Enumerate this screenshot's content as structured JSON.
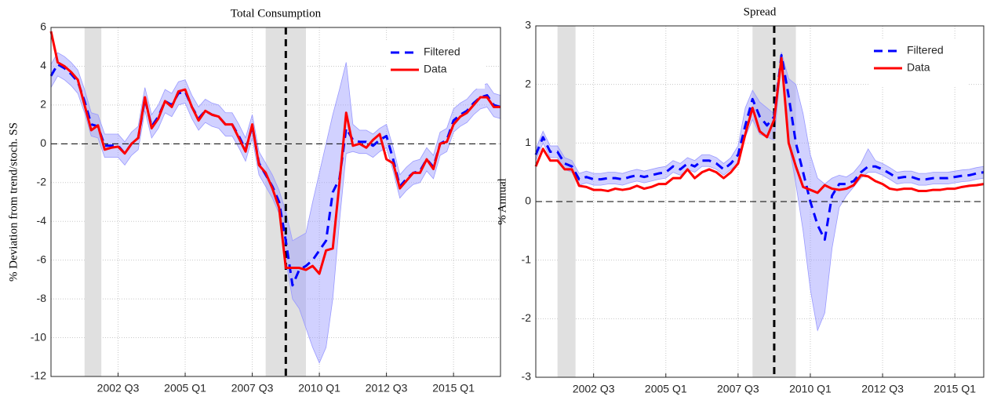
{
  "chart_data": [
    {
      "type": "line",
      "title": "Total Consumption",
      "y_label": "% Deviation from trend/stoch. SS",
      "x": [
        2000,
        2000.25,
        2000.5,
        2000.75,
        2001,
        2001.25,
        2001.5,
        2001.75,
        2002,
        2002.25,
        2002.5,
        2002.75,
        2003,
        2003.25,
        2003.5,
        2003.75,
        2004,
        2004.25,
        2004.5,
        2004.75,
        2005,
        2005.25,
        2005.5,
        2005.75,
        2006,
        2006.25,
        2006.5,
        2006.75,
        2007,
        2007.25,
        2007.5,
        2007.75,
        2008,
        2008.25,
        2008.5,
        2008.75,
        2009,
        2009.25,
        2009.5,
        2009.75,
        2010,
        2010.25,
        2010.5,
        2010.75,
        2011,
        2011.25,
        2011.5,
        2011.75,
        2012,
        2012.25,
        2012.5,
        2012.75,
        2013,
        2013.25,
        2013.5,
        2013.75,
        2014,
        2014.25,
        2014.5,
        2014.75,
        2015,
        2015.25,
        2015.5,
        2015.75,
        2016,
        2016.25,
        2016.5,
        2016.75
      ],
      "series": [
        {
          "name": "Filtered",
          "color": "#0000ff",
          "linestyle": "dashed",
          "values": [
            3.5,
            4.1,
            3.9,
            3.6,
            3.2,
            2.2,
            1.0,
            0.9,
            -0.1,
            -0.1,
            -0.1,
            -0.5,
            0.0,
            0.3,
            2.3,
            0.9,
            1.4,
            2.2,
            2.0,
            2.6,
            2.7,
            1.9,
            1.3,
            1.7,
            1.5,
            1.4,
            1.0,
            1.0,
            0.4,
            -0.3,
            0.9,
            -1.0,
            -1.6,
            -2.2,
            -3.0,
            -5.0,
            -7.3,
            -6.5,
            -6.3,
            -6.0,
            -5.5,
            -5.0,
            -2.5,
            -1.8,
            0.8,
            0.2,
            0.1,
            0.1,
            -0.1,
            0.2,
            0.4,
            -0.8,
            -2.2,
            -1.8,
            -1.5,
            -1.4,
            -0.8,
            -1.2,
            0.0,
            0.2,
            1.2,
            1.5,
            1.7,
            2.1,
            2.4,
            2.5,
            2.0,
            1.9
          ]
        },
        {
          "name": "Data",
          "color": "#ff0000",
          "linestyle": "solid",
          "values": [
            5.8,
            4.2,
            4.0,
            3.7,
            3.3,
            2.0,
            0.7,
            0.95,
            -0.3,
            -0.2,
            -0.15,
            -0.5,
            0.0,
            0.3,
            2.4,
            0.8,
            1.3,
            2.2,
            1.9,
            2.7,
            2.8,
            1.9,
            1.2,
            1.7,
            1.5,
            1.4,
            1.0,
            1.0,
            0.3,
            -0.4,
            1.0,
            -1.1,
            -1.5,
            -2.3,
            -3.3,
            -6.4,
            -6.4,
            -6.4,
            -6.5,
            -6.3,
            -6.7,
            -5.5,
            -5.4,
            -2.0,
            1.6,
            -0.1,
            0.0,
            -0.2,
            0.2,
            0.5,
            -0.8,
            -1.0,
            -2.3,
            -1.9,
            -1.5,
            -1.5,
            -0.8,
            -1.3,
            0.0,
            0.1,
            1.0,
            1.4,
            1.6,
            2.0,
            2.4,
            2.4,
            1.9,
            1.9
          ]
        }
      ],
      "band": {
        "color": "#9a9aff",
        "upper": [
          4.1,
          4.7,
          4.5,
          4.2,
          3.8,
          2.8,
          1.6,
          1.5,
          0.5,
          0.5,
          0.5,
          0.1,
          0.6,
          0.9,
          2.9,
          1.5,
          2.0,
          2.8,
          2.6,
          3.2,
          3.3,
          2.5,
          1.9,
          2.3,
          2.1,
          2.0,
          1.6,
          1.6,
          1.0,
          0.3,
          1.5,
          -0.4,
          -1.0,
          -1.6,
          -2.4,
          -3.5,
          -5.0,
          -4.8,
          -4.6,
          -3.0,
          -1.5,
          0.0,
          1.5,
          2.8,
          4.2,
          1.0,
          0.7,
          0.7,
          0.5,
          0.8,
          1.0,
          -0.2,
          -1.6,
          -1.2,
          -0.9,
          -0.8,
          -0.2,
          -0.6,
          0.6,
          0.8,
          1.8,
          2.1,
          2.3,
          2.7,
          3.0,
          3.1,
          2.6,
          2.5
        ],
        "lower": [
          2.9,
          3.5,
          3.3,
          3.0,
          2.6,
          1.6,
          0.4,
          0.3,
          -0.7,
          -0.7,
          -0.7,
          -1.1,
          -0.6,
          -0.3,
          1.7,
          0.3,
          0.8,
          1.6,
          1.4,
          2.0,
          2.1,
          1.3,
          0.7,
          1.1,
          0.9,
          0.8,
          0.4,
          0.4,
          -0.2,
          -0.9,
          0.3,
          -1.6,
          -2.2,
          -2.8,
          -3.6,
          -6.0,
          -8.0,
          -8.5,
          -9.5,
          -10.5,
          -11.3,
          -10.5,
          -8.0,
          -4.0,
          -0.5,
          -0.4,
          -0.5,
          -0.5,
          -0.7,
          -0.4,
          -0.2,
          -1.4,
          -2.8,
          -2.4,
          -2.1,
          -2.0,
          -1.4,
          -1.8,
          -0.6,
          -0.4,
          0.6,
          0.9,
          1.1,
          1.5,
          1.8,
          1.9,
          1.4,
          1.3
        ]
      },
      "recessions": [
        [
          2001.25,
          2001.875
        ],
        [
          2008.0,
          2009.5
        ]
      ],
      "recession_color": "#e0e0e0",
      "vline": 2008.75,
      "hline": 0,
      "xlim": [
        2000,
        2016.75
      ],
      "xticks": [
        {
          "value": 2002.5,
          "label": "2002 Q3"
        },
        {
          "value": 2005,
          "label": "2005 Q1"
        },
        {
          "value": 2007.5,
          "label": "2007 Q3"
        },
        {
          "value": 2010,
          "label": "2010 Q1"
        },
        {
          "value": 2012.5,
          "label": "2012 Q3"
        },
        {
          "value": 2015,
          "label": "2015 Q1"
        }
      ],
      "ylim": [
        -12,
        6
      ],
      "yticks": [
        -12,
        -10,
        -8,
        -6,
        -4,
        -2,
        0,
        2,
        4,
        6
      ],
      "grid": true,
      "legend": "upper right"
    },
    {
      "type": "line",
      "title": "Spread",
      "y_label": "% Annual",
      "x": [
        2000.5,
        2000.75,
        2001,
        2001.25,
        2001.5,
        2001.75,
        2002,
        2002.25,
        2002.5,
        2002.75,
        2003,
        2003.25,
        2003.5,
        2003.75,
        2004,
        2004.25,
        2004.5,
        2004.75,
        2005,
        2005.25,
        2005.5,
        2005.75,
        2006,
        2006.25,
        2006.5,
        2006.75,
        2007,
        2007.25,
        2007.5,
        2007.75,
        2008,
        2008.25,
        2008.5,
        2008.75,
        2009,
        2009.25,
        2009.5,
        2009.75,
        2010,
        2010.25,
        2010.5,
        2010.75,
        2011,
        2011.25,
        2011.5,
        2011.75,
        2012,
        2012.25,
        2012.5,
        2012.75,
        2013,
        2013.25,
        2013.5,
        2013.75,
        2014,
        2014.25,
        2014.5,
        2014.75,
        2015,
        2015.25,
        2015.5,
        2015.75,
        2016
      ],
      "series": [
        {
          "name": "Filtered",
          "color": "#0000ff",
          "linestyle": "dashed",
          "values": [
            0.8,
            1.1,
            0.85,
            0.85,
            0.65,
            0.6,
            0.38,
            0.42,
            0.38,
            0.38,
            0.4,
            0.4,
            0.38,
            0.42,
            0.45,
            0.42,
            0.45,
            0.48,
            0.5,
            0.6,
            0.55,
            0.65,
            0.6,
            0.7,
            0.7,
            0.65,
            0.55,
            0.65,
            0.8,
            1.3,
            1.75,
            1.45,
            1.3,
            1.45,
            2.5,
            1.8,
            1.0,
            0.5,
            0.0,
            -0.4,
            -0.65,
            0.1,
            0.3,
            0.3,
            0.35,
            0.5,
            0.6,
            0.6,
            0.55,
            0.48,
            0.4,
            0.42,
            0.42,
            0.38,
            0.38,
            0.4,
            0.4,
            0.4,
            0.42,
            0.44,
            0.45,
            0.48,
            0.5
          ]
        },
        {
          "name": "Data",
          "color": "#ff0000",
          "linestyle": "solid",
          "values": [
            0.6,
            0.9,
            0.7,
            0.7,
            0.55,
            0.55,
            0.27,
            0.25,
            0.2,
            0.2,
            0.18,
            0.22,
            0.2,
            0.22,
            0.27,
            0.22,
            0.25,
            0.3,
            0.3,
            0.4,
            0.4,
            0.55,
            0.4,
            0.5,
            0.55,
            0.5,
            0.4,
            0.5,
            0.65,
            1.15,
            1.6,
            1.2,
            1.1,
            1.4,
            2.45,
            1.0,
            0.6,
            0.25,
            0.2,
            0.15,
            0.28,
            0.22,
            0.2,
            0.22,
            0.28,
            0.45,
            0.43,
            0.35,
            0.3,
            0.22,
            0.2,
            0.22,
            0.22,
            0.18,
            0.18,
            0.2,
            0.2,
            0.22,
            0.22,
            0.25,
            0.27,
            0.28,
            0.3
          ]
        }
      ],
      "band": {
        "color": "#9a9aff",
        "upper": [
          0.9,
          1.2,
          0.95,
          0.95,
          0.75,
          0.7,
          0.48,
          0.52,
          0.48,
          0.48,
          0.5,
          0.5,
          0.48,
          0.52,
          0.55,
          0.52,
          0.55,
          0.58,
          0.6,
          0.7,
          0.65,
          0.75,
          0.7,
          0.8,
          0.8,
          0.75,
          0.65,
          0.75,
          0.95,
          1.6,
          1.9,
          1.7,
          1.6,
          1.5,
          2.55,
          2.1,
          2.0,
          1.5,
          0.8,
          0.4,
          0.3,
          0.4,
          0.45,
          0.42,
          0.5,
          0.65,
          0.9,
          0.7,
          0.65,
          0.58,
          0.5,
          0.52,
          0.52,
          0.48,
          0.48,
          0.5,
          0.5,
          0.5,
          0.52,
          0.54,
          0.55,
          0.58,
          0.6
        ],
        "lower": [
          0.7,
          1.0,
          0.75,
          0.75,
          0.55,
          0.5,
          0.28,
          0.32,
          0.28,
          0.28,
          0.3,
          0.3,
          0.28,
          0.32,
          0.35,
          0.32,
          0.35,
          0.38,
          0.4,
          0.5,
          0.45,
          0.55,
          0.5,
          0.6,
          0.6,
          0.55,
          0.45,
          0.55,
          0.65,
          1.1,
          1.4,
          1.15,
          1.1,
          1.05,
          2.4,
          1.0,
          0.3,
          -0.5,
          -1.5,
          -2.2,
          -1.9,
          -0.8,
          -0.1,
          0.1,
          0.25,
          0.4,
          0.5,
          0.5,
          0.45,
          0.38,
          0.3,
          0.32,
          0.32,
          0.28,
          0.28,
          0.3,
          0.3,
          0.3,
          0.32,
          0.34,
          0.35,
          0.38,
          0.4
        ]
      },
      "recessions": [
        [
          2001.25,
          2001.875
        ],
        [
          2008.0,
          2009.5
        ]
      ],
      "recession_color": "#e0e0e0",
      "vline": 2008.75,
      "hline": 0,
      "xlim": [
        2000.5,
        2016
      ],
      "xticks": [
        {
          "value": 2002.5,
          "label": "2002 Q3"
        },
        {
          "value": 2005,
          "label": "2005 Q1"
        },
        {
          "value": 2007.5,
          "label": "2007 Q3"
        },
        {
          "value": 2010,
          "label": "2010 Q1"
        },
        {
          "value": 2012.5,
          "label": "2012 Q3"
        },
        {
          "value": 2015,
          "label": "2015 Q1"
        }
      ],
      "ylim": [
        -3,
        3
      ],
      "yticks": [
        -3,
        -2,
        -1,
        0,
        1,
        2,
        3
      ],
      "grid": true,
      "legend": "upper right"
    }
  ]
}
